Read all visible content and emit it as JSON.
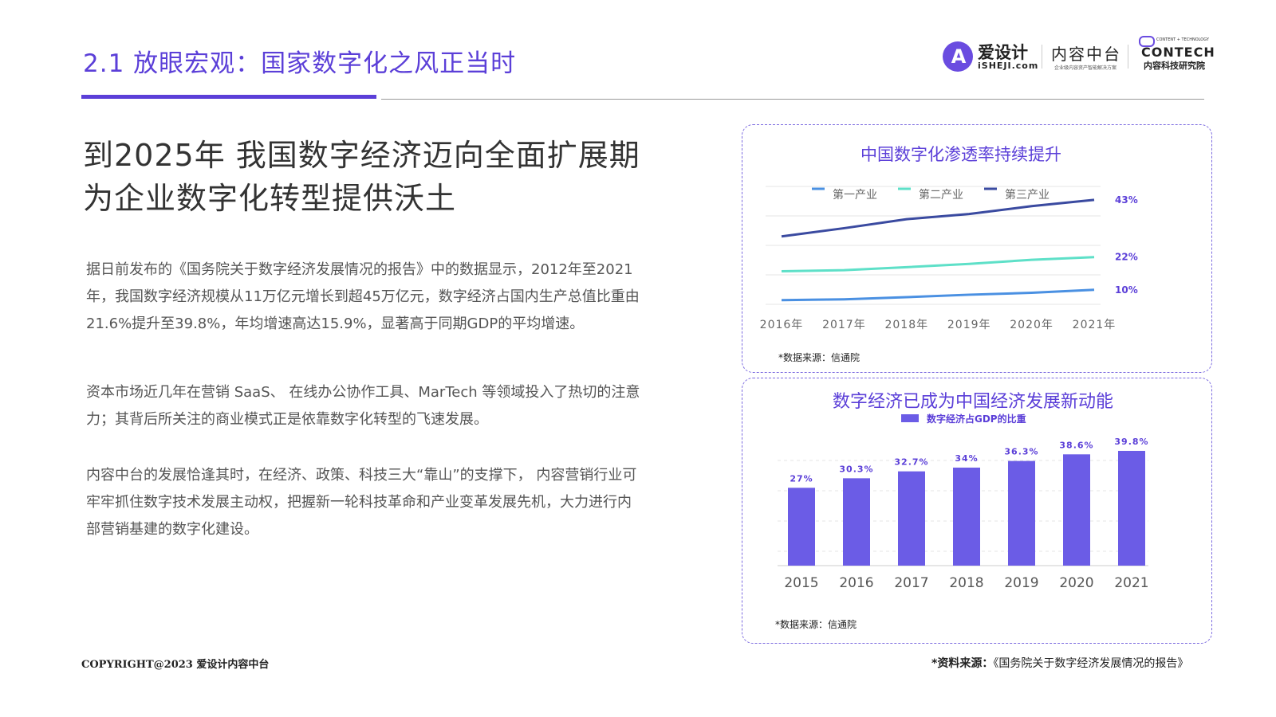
{
  "header": {
    "section_title": "2.1 放眼宏观：国家数字化之风正当时",
    "logo_isheji_glyph": "A",
    "logo_isheji_cn": "爱设计",
    "logo_isheji_en": "iSHEJI.com",
    "logo_ncp": "内容中台",
    "logo_ncp_sub": "企业级内容资产智能解决方案",
    "logo_contech_tag": "CONTENT + TECHNOLOGY",
    "logo_contech": "CONTECH",
    "logo_contech_sub": "内容科技研究院"
  },
  "main": {
    "headline_line1": "到2025年 我国数字经济迈向全面扩展期",
    "headline_line2": "为企业数字化转型提供沃土",
    "paragraph_1": "据日前发布的《国务院关于数字经济发展情况的报告》中的数据显示，2012年至2021年，我国数字经济规模从11万亿元增长到超45万亿元，数字经济占国内生产总值比重由21.6%提升至39.8%，年均增速高达15.9%，显著高于同期GDP的平均增速。",
    "paragraph_2": "资本市场近几年在营销 SaaS、 在线办公协作工具、MarTech 等领域投入了热切的注意力；其背后所关注的商业模式正是依靠数字化转型的飞速发展。",
    "paragraph_3": "内容中台的发展恰逢其时，在经济、政策、科技三大“靠山”的支撑下， 内容营销行业可牢牢抓住数字技术发展主动权，把握新一轮科技革命和产业变革发展先机，大力进行内部营销基建的数字化建设。"
  },
  "chart_data": [
    {
      "type": "line",
      "title": "中国数字化渗透率持续提升",
      "categories": [
        "2016年",
        "2017年",
        "2018年",
        "2019年",
        "2020年",
        "2021年"
      ],
      "series": [
        {
          "name": "第一产业",
          "color": "#4a90e2",
          "values": [
            6.2,
            6.5,
            7.3,
            8.2,
            8.9,
            10
          ]
        },
        {
          "name": "第二产业",
          "color": "#5ee0c8",
          "values": [
            16.8,
            17.2,
            18.3,
            19.5,
            21.0,
            22
          ]
        },
        {
          "name": "第三产业",
          "color": "#3a4aa0",
          "values": [
            29.6,
            32.6,
            35.9,
            37.8,
            40.7,
            43
          ]
        }
      ],
      "end_labels": [
        "10%",
        "22%",
        "43%"
      ],
      "ylim": [
        0,
        45
      ],
      "source": "*数据来源：信通院"
    },
    {
      "type": "bar",
      "title": "数字经济已成为中国经济发展新动能",
      "legend": "数字经济占GDP的比重",
      "color": "#6b5ce6",
      "categories": [
        "2015",
        "2016",
        "2017",
        "2018",
        "2019",
        "2020",
        "2021"
      ],
      "values": [
        27,
        30.3,
        32.7,
        34,
        36.3,
        38.6,
        39.8
      ],
      "data_labels": [
        "27%",
        "30.3%",
        "32.7%",
        "34%",
        "36.3%",
        "38.6%",
        "39.8%"
      ],
      "ylim": [
        0,
        42
      ],
      "source": "*数据来源：信通院"
    }
  ],
  "footer": {
    "copyright": "COPYRIGHT@2023  爱设计内容中台",
    "source_label": "*资料来源：",
    "source_text": "《国务院关于数字经济发展情况的报告》"
  }
}
